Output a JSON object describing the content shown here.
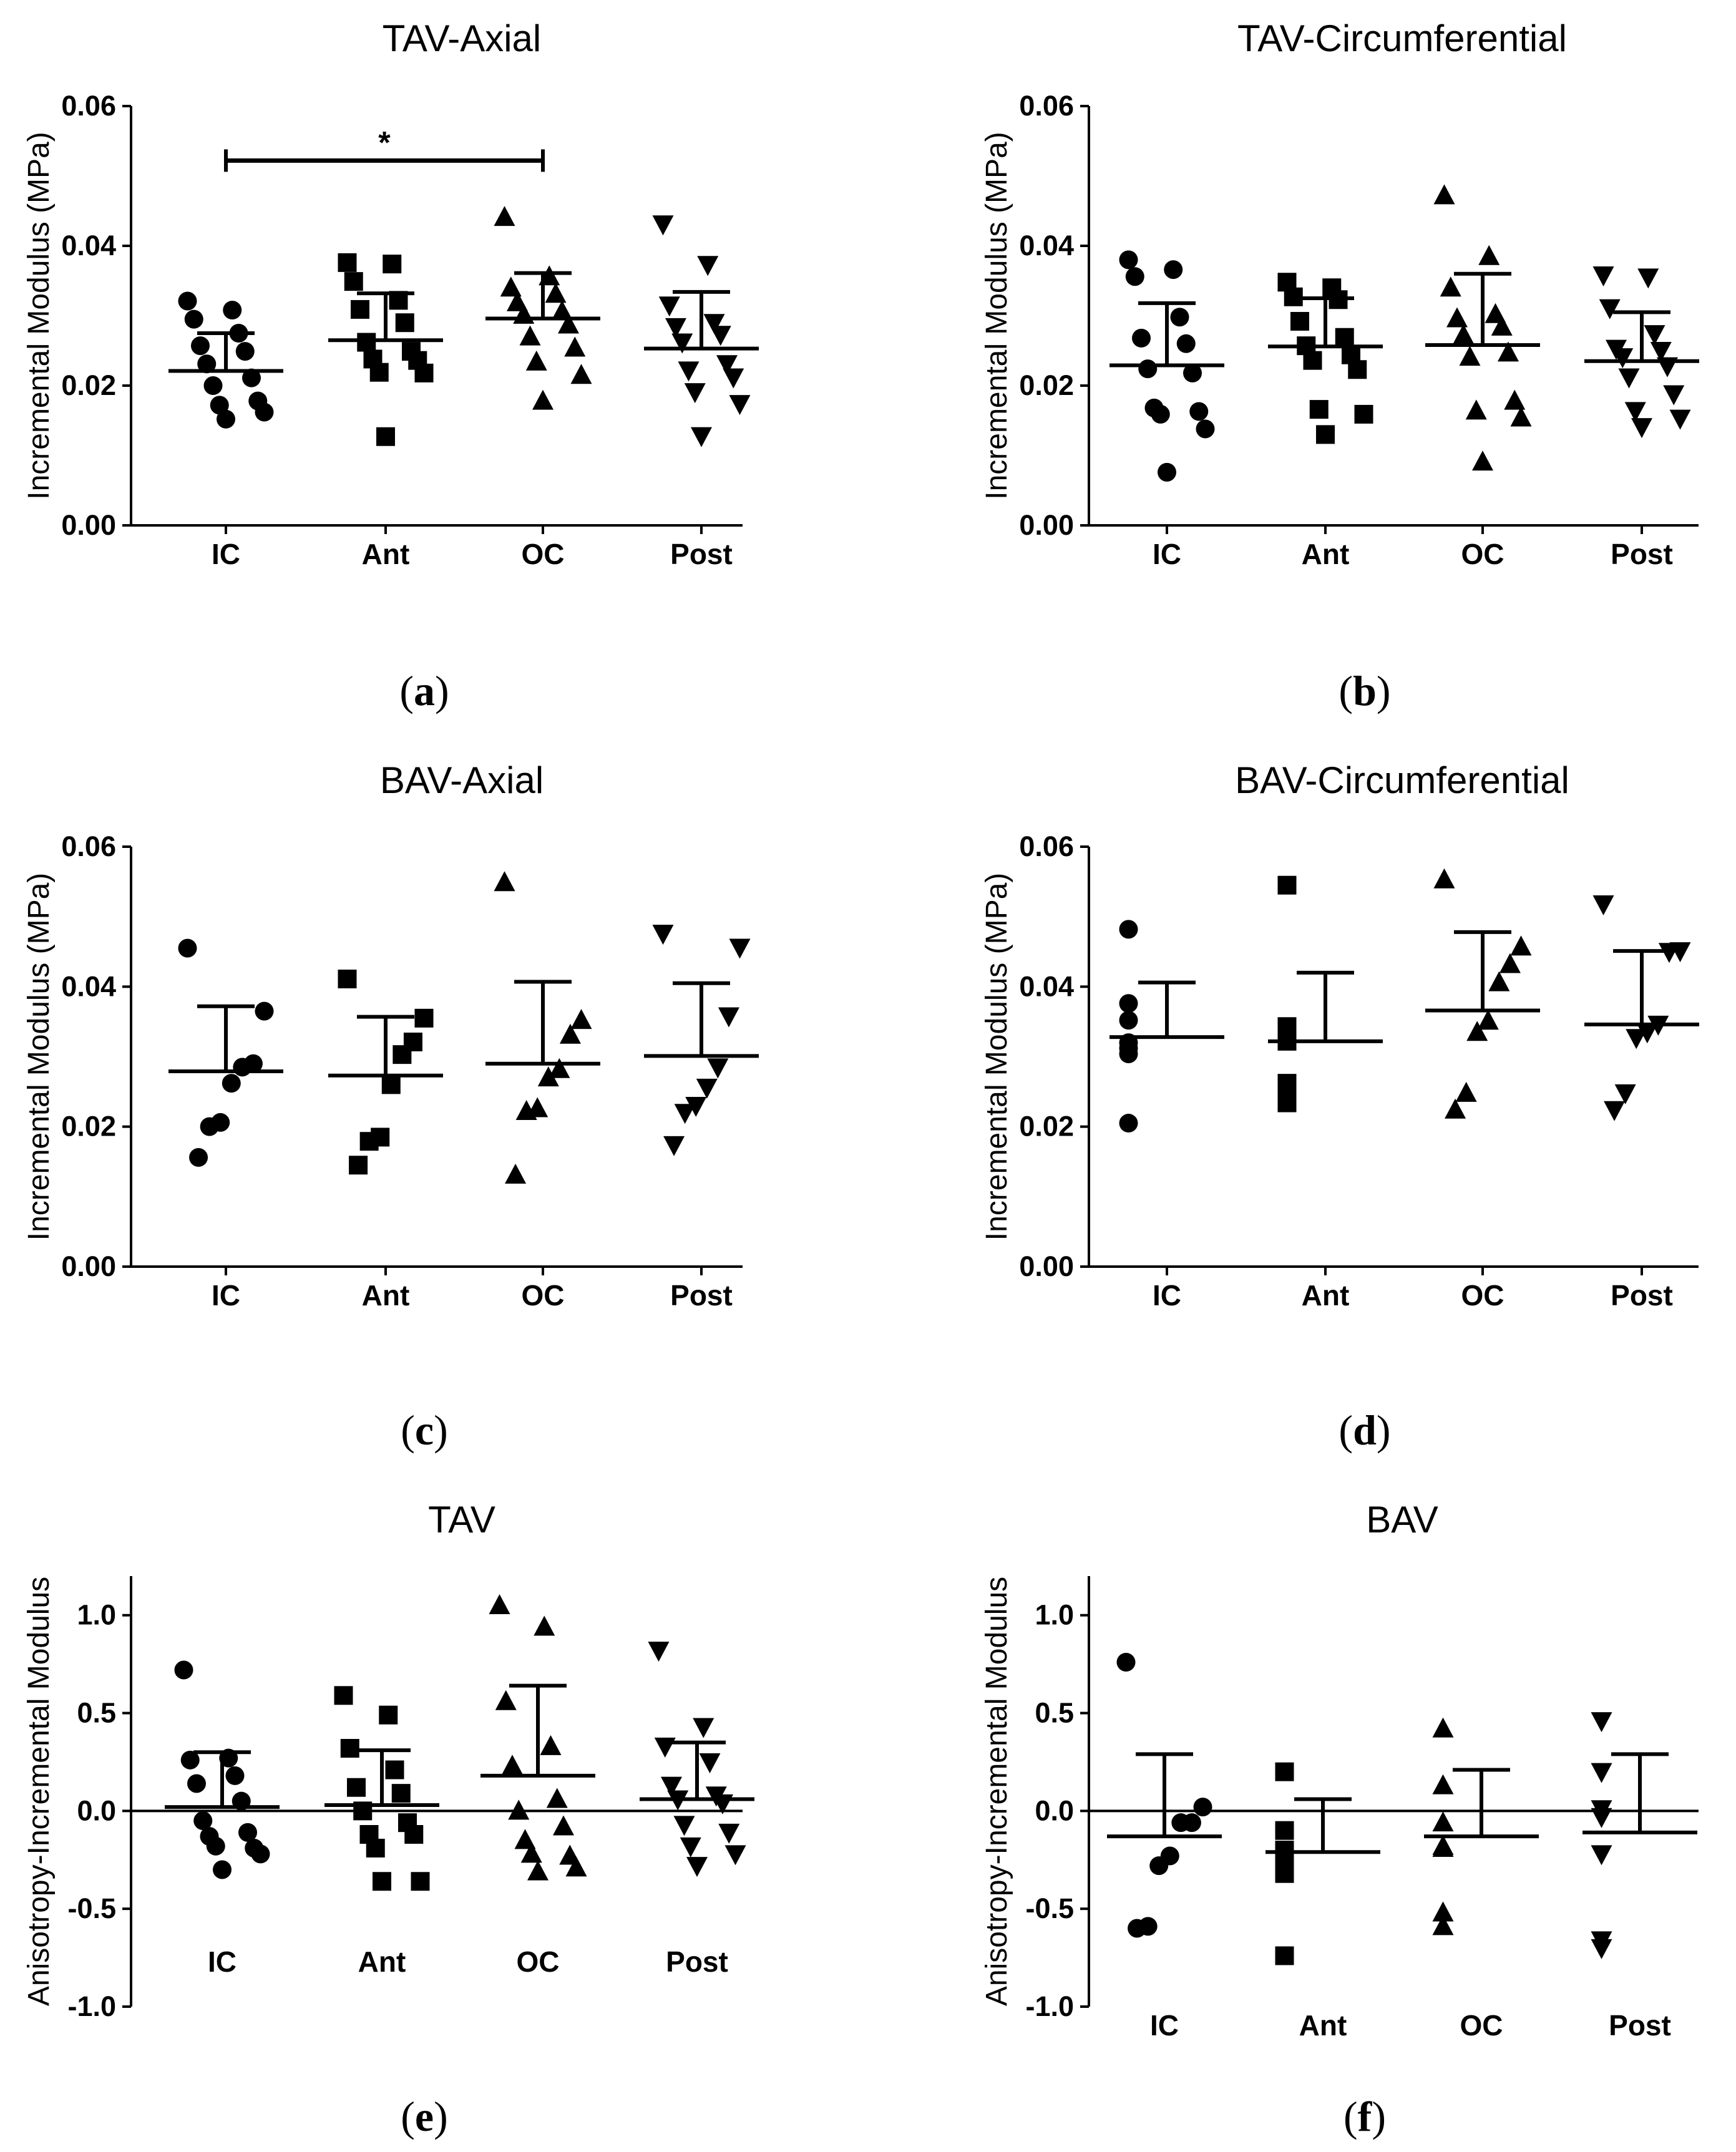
{
  "chart_data": [
    {
      "id": "a",
      "type": "scatter",
      "title": "TAV-Axial",
      "subfig": "a",
      "ylabel": "Incremental Modulus (MPa)",
      "ylim": [
        0,
        0.06
      ],
      "yticks": [
        0.0,
        0.02,
        0.04,
        0.06
      ],
      "tick_labels": [
        "0.00",
        "0.02",
        "0.04",
        "0.06"
      ],
      "categories": [
        "IC",
        "Ant",
        "OC",
        "Post"
      ],
      "markers": [
        "circle",
        "square",
        "triangle-up",
        "triangle-down"
      ],
      "mean": [
        0.0221,
        0.0265,
        0.0296,
        0.0253
      ],
      "sd_upper": [
        0.0275,
        0.0332,
        0.0361,
        0.0334
      ],
      "points": [
        [
          0.0321,
          0.0308,
          0.0295,
          0.0275,
          0.0257,
          0.0249,
          0.0231,
          0.0211,
          0.02,
          0.0178,
          0.0172,
          0.0162,
          0.0152
        ],
        [
          0.0376,
          0.0374,
          0.0349,
          0.0322,
          0.0309,
          0.029,
          0.0262,
          0.0249,
          0.0238,
          0.0236,
          0.0219,
          0.0218,
          0.0127
        ],
        [
          0.0441,
          0.0356,
          0.034,
          0.0331,
          0.0319,
          0.0306,
          0.0301,
          0.0287,
          0.027,
          0.0254,
          0.0234,
          0.0215,
          0.0178
        ],
        [
          0.0431,
          0.0373,
          0.0315,
          0.029,
          0.0284,
          0.0273,
          0.0262,
          0.0231,
          0.0222,
          0.0212,
          0.0191,
          0.0174,
          0.0128
        ]
      ],
      "annotation": {
        "text": "*",
        "from": "IC",
        "to": "OC",
        "y": 0.0522
      }
    },
    {
      "id": "b",
      "type": "scatter",
      "title": "TAV-Circumferential",
      "subfig": "b",
      "ylabel": "Incremental Modulus (MPa)",
      "ylim": [
        0,
        0.06
      ],
      "yticks": [
        0.0,
        0.02,
        0.04,
        0.06
      ],
      "tick_labels": [
        "0.00",
        "0.02",
        "0.04",
        "0.06"
      ],
      "categories": [
        "IC",
        "Ant",
        "OC",
        "Post"
      ],
      "markers": [
        "circle",
        "square",
        "triangle-up",
        "triangle-down"
      ],
      "mean": [
        0.0229,
        0.0256,
        0.0258,
        0.0235
      ],
      "sd_upper": [
        0.0318,
        0.0325,
        0.036,
        0.0305
      ],
      "points": [
        [
          0.038,
          0.0366,
          0.0356,
          0.0298,
          0.0268,
          0.026,
          0.0224,
          0.0218,
          0.0168,
          0.0163,
          0.0159,
          0.0138,
          0.0076
        ],
        [
          0.0348,
          0.034,
          0.0327,
          0.0323,
          0.0292,
          0.0269,
          0.0257,
          0.0244,
          0.0236,
          0.0223,
          0.0166,
          0.0159,
          0.013
        ],
        [
          0.0472,
          0.0385,
          0.034,
          0.0302,
          0.0296,
          0.0284,
          0.0272,
          0.0247,
          0.0241,
          0.0178,
          0.0164,
          0.0154,
          0.0091
        ],
        [
          0.0358,
          0.0355,
          0.0311,
          0.0274,
          0.0253,
          0.025,
          0.0241,
          0.0228,
          0.0212,
          0.0188,
          0.0164,
          0.0153,
          0.0141
        ]
      ]
    },
    {
      "id": "c",
      "type": "scatter",
      "title": "BAV-Axial",
      "subfig": "c",
      "ylabel": "Incremental Modulus (MPa)",
      "ylim": [
        0,
        0.06
      ],
      "yticks": [
        0.0,
        0.02,
        0.04,
        0.06
      ],
      "tick_labels": [
        "0.00",
        "0.02",
        "0.04",
        "0.06"
      ],
      "categories": [
        "IC",
        "Ant",
        "OC",
        "Post"
      ],
      "markers": [
        "circle",
        "square",
        "triangle-up",
        "triangle-down"
      ],
      "mean": [
        0.0279,
        0.0273,
        0.029,
        0.0301
      ],
      "sd_upper": [
        0.0372,
        0.0357,
        0.0407,
        0.0405
      ],
      "points": [
        [
          0.0455,
          0.0365,
          0.029,
          0.0285,
          0.0262,
          0.0206,
          0.02,
          0.0156
        ],
        [
          0.0411,
          0.0355,
          0.0321,
          0.0303,
          0.026,
          0.0185,
          0.0179,
          0.0145
        ],
        [
          0.0549,
          0.0352,
          0.0331,
          0.0282,
          0.027,
          0.0226,
          0.0222,
          0.0131
        ],
        [
          0.0476,
          0.0456,
          0.0358,
          0.0285,
          0.0256,
          0.023,
          0.022,
          0.0174
        ]
      ]
    },
    {
      "id": "d",
      "type": "scatter",
      "title": "BAV-Circumferential",
      "subfig": "d",
      "ylabel": "Incremental Modulus (MPa)",
      "ylim": [
        0,
        0.06
      ],
      "yticks": [
        0.0,
        0.02,
        0.04,
        0.06
      ],
      "tick_labels": [
        "0.00",
        "0.02",
        "0.04",
        "0.06"
      ],
      "categories": [
        "IC",
        "Ant",
        "OC",
        "Post"
      ],
      "markers": [
        "circle",
        "square",
        "triangle-up",
        "triangle-down"
      ],
      "mean": [
        0.0328,
        0.0322,
        0.0366,
        0.0346
      ],
      "sd_upper": [
        0.0406,
        0.042,
        0.0478,
        0.0451
      ],
      "points": [
        [
          0.0482,
          0.0376,
          0.0352,
          0.032,
          0.0312,
          0.0304,
          0.0205
        ],
        [
          0.0545,
          0.0343,
          0.0337,
          0.0322,
          0.0262,
          0.0256,
          0.0234
        ],
        [
          0.0553,
          0.0457,
          0.0432,
          0.0406,
          0.0351,
          0.0335,
          0.0248,
          0.0224
        ],
        [
          0.0518,
          0.0451,
          0.045,
          0.0346,
          0.0335,
          0.0327,
          0.0248,
          0.0224
        ]
      ]
    },
    {
      "id": "e",
      "type": "scatter",
      "title": "TAV",
      "subfig": "e",
      "ylabel": "Anisotropy-Incremental Modulus",
      "ylim": [
        -1.0,
        1.2
      ],
      "yticks": [
        -1.0,
        -0.5,
        0.0,
        0.5,
        1.0
      ],
      "tick_labels": [
        "-1.0",
        "-0.5",
        "0.0",
        "0.5",
        "1.0"
      ],
      "zero_line": true,
      "categories": [
        "IC",
        "Ant",
        "OC",
        "Post"
      ],
      "markers": [
        "circle",
        "square",
        "triangle-up",
        "triangle-down"
      ],
      "mean": [
        0.02,
        0.03,
        0.18,
        0.06
      ],
      "sd_upper": [
        0.3,
        0.31,
        0.64,
        0.35
      ],
      "points": [
        [
          0.72,
          0.27,
          0.26,
          0.18,
          0.14,
          0.05,
          -0.05,
          -0.11,
          -0.13,
          -0.19,
          -0.18,
          -0.22,
          -0.3
        ],
        [
          0.59,
          0.49,
          0.32,
          0.21,
          0.12,
          0.09,
          0.0,
          -0.06,
          -0.12,
          -0.12,
          -0.19,
          -0.36,
          -0.36
        ],
        [
          1.05,
          0.94,
          0.56,
          0.33,
          0.23,
          0.06,
          0.0,
          -0.08,
          -0.15,
          -0.23,
          -0.22,
          -0.29,
          -0.31
        ],
        [
          0.82,
          0.43,
          0.33,
          0.25,
          0.13,
          0.08,
          0.06,
          0.04,
          -0.07,
          -0.11,
          -0.18,
          -0.22,
          -0.28
        ]
      ]
    },
    {
      "id": "f",
      "type": "scatter",
      "title": "BAV",
      "subfig": "f",
      "ylabel": "Anisotropy-Incremental Modulus",
      "ylim": [
        -1.0,
        1.2
      ],
      "yticks": [
        -1.0,
        -0.5,
        0.0,
        0.5,
        1.0
      ],
      "tick_labels": [
        "-1.0",
        "-0.5",
        "0.0",
        "0.5",
        "1.0"
      ],
      "zero_line": true,
      "categories": [
        "IC",
        "Ant",
        "OC",
        "Post"
      ],
      "markers": [
        "circle",
        "square",
        "triangle-up",
        "triangle-down"
      ],
      "mean": [
        -0.13,
        -0.21,
        -0.13,
        -0.11
      ],
      "sd_upper": [
        0.29,
        0.06,
        0.21,
        0.29
      ],
      "points": [
        [
          0.76,
          0.02,
          -0.06,
          -0.06,
          -0.23,
          -0.28,
          -0.59,
          -0.6
        ],
        [
          0.2,
          -0.1,
          -0.2,
          -0.22,
          -0.26,
          -0.32,
          -0.74
        ],
        [
          0.42,
          0.13,
          -0.06,
          -0.18,
          -0.19,
          -0.52,
          -0.59
        ],
        [
          0.46,
          0.2,
          0.01,
          -0.03,
          -0.22,
          -0.66,
          -0.7
        ]
      ]
    }
  ]
}
